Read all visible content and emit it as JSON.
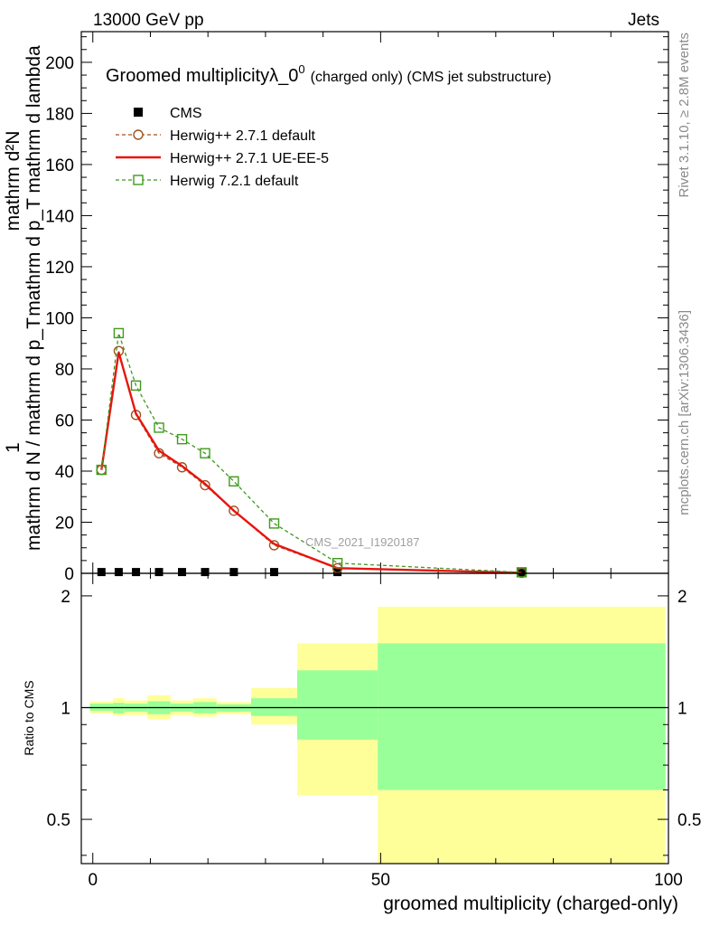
{
  "header": {
    "left": "13000 GeV pp",
    "right": "Jets"
  },
  "side_text": {
    "rivet": "Rivet 3.1.10, ≥ 2.8M events",
    "mcplots": "mcplots.cern.ch [arXiv:1306.3436]"
  },
  "watermark": "CMS_2021_I1920187",
  "chart_data": [
    {
      "type": "line",
      "title_main": "Groomed multiplicityλ_0",
      "title_sup": "0",
      "title_sub": "(charged only) (CMS jet substructure)",
      "ylabel_numerator_lines": [
        "mathrm d²N",
        "mathrm d p_T mathrm d lambda"
      ],
      "ylabel_left": "1",
      "ylabel_denominator": "mathrm d N / mathrm d p_T",
      "xlim": [
        -2,
        100
      ],
      "ylim": [
        0,
        212
      ],
      "yticks": [
        0,
        20,
        40,
        60,
        80,
        100,
        120,
        140,
        160,
        180,
        200
      ],
      "legend_position": "top-left",
      "series": [
        {
          "name": "CMS",
          "style": "data-squares",
          "color": "#000000",
          "x": [
            1.5,
            4.5,
            7.5,
            11.5,
            15.5,
            19.5,
            24.5,
            31.5,
            42.5,
            74.5
          ],
          "y": [
            0.5,
            0.5,
            0.5,
            0.5,
            0.5,
            0.5,
            0.5,
            0.5,
            0.5,
            0.3
          ]
        },
        {
          "name": "Herwig++ 2.7.1 default",
          "style": "dashed-circles",
          "color": "#a0521f",
          "x": [
            1.5,
            4.5,
            7.5,
            11.5,
            15.5,
            19.5,
            24.5,
            31.5,
            42.5,
            74.5
          ],
          "y": [
            40.5,
            87,
            62,
            47,
            41.5,
            34.5,
            24.5,
            11,
            2,
            0.2
          ]
        },
        {
          "name": "Herwig++ 2.7.1 UE-EE-5",
          "style": "solid",
          "color": "#e8140e",
          "x": [
            1.5,
            4.5,
            7.5,
            11.5,
            15.5,
            19.5,
            24.5,
            31.5,
            42.5,
            74.5
          ],
          "y": [
            40.5,
            86.5,
            62.5,
            48,
            42,
            35,
            24.5,
            11.5,
            2,
            0.2
          ]
        },
        {
          "name": "Herwig 7.2.1 default",
          "style": "dashed-squares",
          "color": "#3f9a1c",
          "x": [
            1.5,
            4.5,
            7.5,
            11.5,
            15.5,
            19.5,
            24.5,
            31.5,
            42.5,
            74.5
          ],
          "y": [
            40.5,
            94,
            73.5,
            57,
            52.5,
            47,
            36,
            19.5,
            4,
            0.4
          ]
        }
      ]
    },
    {
      "type": "area",
      "ylabel": "Ratio to CMS",
      "xlabel": "groomed multiplicity (charged-only)",
      "xlim": [
        -2,
        100
      ],
      "ylim": [
        0.38,
        2.3
      ],
      "yscale": "log",
      "xticks": [
        0,
        50,
        100
      ],
      "yticks": [
        0.5,
        1,
        2
      ],
      "reference_line": 1,
      "band_colors": {
        "inner": "#99ff99",
        "outer": "#ffff99"
      },
      "bins": [
        {
          "x0": -0.5,
          "x1": 3.5,
          "inner": [
            0.98,
            1.025
          ],
          "outer": [
            0.965,
            1.04
          ]
        },
        {
          "x0": 3.5,
          "x1": 5.5,
          "inner": [
            0.965,
            1.03
          ],
          "outer": [
            0.95,
            1.06
          ]
        },
        {
          "x0": 5.5,
          "x1": 9.5,
          "inner": [
            0.975,
            1.025
          ],
          "outer": [
            0.955,
            1.045
          ]
        },
        {
          "x0": 9.5,
          "x1": 13.5,
          "inner": [
            0.96,
            1.04
          ],
          "outer": [
            0.93,
            1.08
          ]
        },
        {
          "x0": 13.5,
          "x1": 17.5,
          "inner": [
            0.975,
            1.025
          ],
          "outer": [
            0.955,
            1.045
          ]
        },
        {
          "x0": 17.5,
          "x1": 21.5,
          "inner": [
            0.965,
            1.035
          ],
          "outer": [
            0.945,
            1.06
          ]
        },
        {
          "x0": 21.5,
          "x1": 27.5,
          "inner": [
            0.975,
            1.02
          ],
          "outer": [
            0.96,
            1.035
          ]
        },
        {
          "x0": 27.5,
          "x1": 35.5,
          "inner": [
            0.95,
            1.06
          ],
          "outer": [
            0.9,
            1.13
          ]
        },
        {
          "x0": 35.5,
          "x1": 49.5,
          "inner": [
            0.82,
            1.26
          ],
          "outer": [
            0.58,
            1.49
          ]
        },
        {
          "x0": 49.5,
          "x1": 99.5,
          "inner": [
            0.6,
            1.49
          ],
          "outer": [
            0.33,
            1.87
          ]
        }
      ]
    }
  ]
}
